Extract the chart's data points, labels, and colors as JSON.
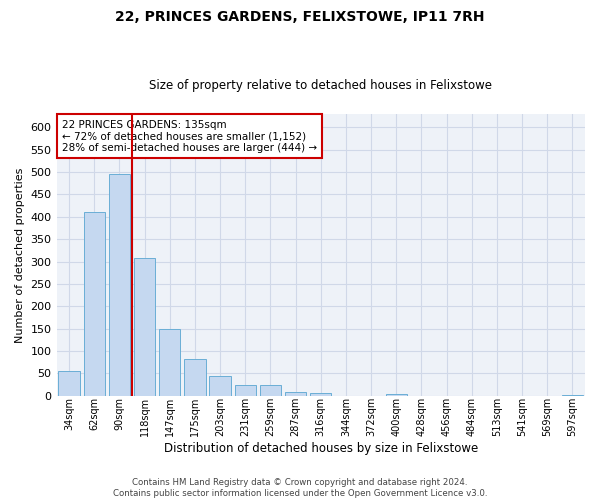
{
  "title": "22, PRINCES GARDENS, FELIXSTOWE, IP11 7RH",
  "subtitle": "Size of property relative to detached houses in Felixstowe",
  "xlabel": "Distribution of detached houses by size in Felixstowe",
  "ylabel": "Number of detached properties",
  "categories": [
    "34sqm",
    "62sqm",
    "90sqm",
    "118sqm",
    "147sqm",
    "175sqm",
    "203sqm",
    "231sqm",
    "259sqm",
    "287sqm",
    "316sqm",
    "344sqm",
    "372sqm",
    "400sqm",
    "428sqm",
    "456sqm",
    "484sqm",
    "513sqm",
    "541sqm",
    "569sqm",
    "597sqm"
  ],
  "values": [
    55,
    410,
    495,
    308,
    150,
    82,
    45,
    23,
    23,
    8,
    6,
    0,
    0,
    4,
    0,
    0,
    0,
    0,
    0,
    0,
    2
  ],
  "bar_color": "#c5d8f0",
  "bar_edge_color": "#6aaed6",
  "annotation_line1": "22 PRINCES GARDENS: 135sqm",
  "annotation_line2": "← 72% of detached houses are smaller (1,152)",
  "annotation_line3": "28% of semi-detached houses are larger (444) →",
  "annotation_box_color": "#ffffff",
  "annotation_box_edge": "#cc0000",
  "vline_color": "#cc0000",
  "vline_x": 2.5,
  "grid_color": "#d0d8e8",
  "bg_color": "#eef2f8",
  "footer_line1": "Contains HM Land Registry data © Crown copyright and database right 2024.",
  "footer_line2": "Contains public sector information licensed under the Open Government Licence v3.0.",
  "ylim": [
    0,
    630
  ],
  "yticks": [
    0,
    50,
    100,
    150,
    200,
    250,
    300,
    350,
    400,
    450,
    500,
    550,
    600
  ]
}
